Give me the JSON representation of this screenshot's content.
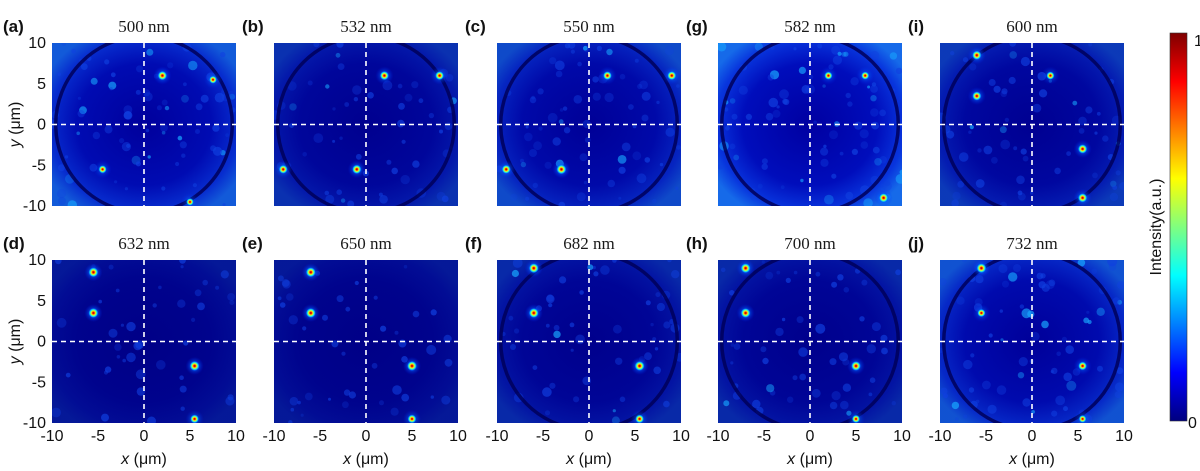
{
  "chart_data": {
    "type": "heatmap",
    "colormap": "jet",
    "x_range": [
      -10,
      10
    ],
    "y_range": [
      -10,
      10
    ],
    "x_ticks": [
      "-10",
      "-5",
      "0",
      "5",
      "10"
    ],
    "y_ticks": [
      "10",
      "5",
      "0",
      "-5",
      "-10"
    ],
    "xlabel_var": "x",
    "xlabel_unit": " (μm)",
    "ylabel_var": "y",
    "ylabel_unit": " (μm)",
    "colorbar": {
      "label": "Intensity(a.u.)",
      "tick_max": "1",
      "tick_min": "0",
      "range": [
        0,
        1
      ]
    },
    "panels": [
      {
        "label": "(a)",
        "title": "500 nm",
        "background_level": 0.22,
        "ring": true,
        "spots": [
          {
            "x": 2,
            "y": 6,
            "intensity": 0.85
          },
          {
            "x": 7.5,
            "y": 5.5,
            "intensity": 0.55
          },
          {
            "x": -4.5,
            "y": -5.5,
            "intensity": 0.6
          },
          {
            "x": 5,
            "y": -9.5,
            "intensity": 0.45
          }
        ]
      },
      {
        "label": "(b)",
        "title": "532 nm",
        "background_level": 0.12,
        "ring": true,
        "spots": [
          {
            "x": 2,
            "y": 6,
            "intensity": 0.8
          },
          {
            "x": 8,
            "y": 6,
            "intensity": 0.75
          },
          {
            "x": -9,
            "y": -5.5,
            "intensity": 0.75
          },
          {
            "x": -1,
            "y": -5.5,
            "intensity": 0.85
          }
        ]
      },
      {
        "label": "(c)",
        "title": "550 nm",
        "background_level": 0.18,
        "ring": true,
        "spots": [
          {
            "x": 2,
            "y": 6,
            "intensity": 0.7
          },
          {
            "x": 9,
            "y": 6,
            "intensity": 0.8
          },
          {
            "x": -9,
            "y": -5.5,
            "intensity": 0.8
          },
          {
            "x": -3,
            "y": -5.5,
            "intensity": 0.95
          }
        ]
      },
      {
        "label": "(g)",
        "title": "582 nm",
        "background_level": 0.26,
        "ring": true,
        "spots": [
          {
            "x": 2,
            "y": 6,
            "intensity": 0.6
          },
          {
            "x": 6,
            "y": 6,
            "intensity": 0.6
          },
          {
            "x": 8,
            "y": -9,
            "intensity": 0.9
          }
        ]
      },
      {
        "label": "(i)",
        "title": "600 nm",
        "background_level": 0.14,
        "ring": true,
        "spots": [
          {
            "x": -6,
            "y": 8.5,
            "intensity": 0.85
          },
          {
            "x": -6,
            "y": 3.5,
            "intensity": 0.8
          },
          {
            "x": 2,
            "y": 6,
            "intensity": 0.6
          },
          {
            "x": 5.5,
            "y": -3,
            "intensity": 0.85
          },
          {
            "x": 5.5,
            "y": -9,
            "intensity": 0.85
          }
        ]
      },
      {
        "label": "(d)",
        "title": "632 nm",
        "background_level": 0.06,
        "ring": false,
        "spots": [
          {
            "x": -5.5,
            "y": 8.5,
            "intensity": 0.95
          },
          {
            "x": -5.5,
            "y": 3.5,
            "intensity": 0.95
          },
          {
            "x": 5.5,
            "y": -3,
            "intensity": 0.95
          },
          {
            "x": 5.5,
            "y": -9.5,
            "intensity": 0.7
          }
        ]
      },
      {
        "label": "(e)",
        "title": "650 nm",
        "background_level": 0.06,
        "ring": false,
        "spots": [
          {
            "x": -6,
            "y": 8.5,
            "intensity": 0.95
          },
          {
            "x": -6,
            "y": 3.5,
            "intensity": 0.95
          },
          {
            "x": 5,
            "y": -3,
            "intensity": 0.95
          },
          {
            "x": 5,
            "y": -9.5,
            "intensity": 0.7
          }
        ]
      },
      {
        "label": "(f)",
        "title": "682 nm",
        "background_level": 0.1,
        "ring": true,
        "spots": [
          {
            "x": -6,
            "y": 9,
            "intensity": 0.95
          },
          {
            "x": -6,
            "y": 3.5,
            "intensity": 0.95
          },
          {
            "x": 5.5,
            "y": -3,
            "intensity": 0.95
          },
          {
            "x": 5.5,
            "y": -9.5,
            "intensity": 0.7
          }
        ]
      },
      {
        "label": "(h)",
        "title": "700 nm",
        "background_level": 0.1,
        "ring": true,
        "spots": [
          {
            "x": -7,
            "y": 9,
            "intensity": 0.95
          },
          {
            "x": -7,
            "y": 3.5,
            "intensity": 0.9
          },
          {
            "x": 5,
            "y": -3,
            "intensity": 0.9
          },
          {
            "x": 5,
            "y": -9.5,
            "intensity": 0.6
          }
        ]
      },
      {
        "label": "(j)",
        "title": "732 nm",
        "background_level": 0.2,
        "ring": true,
        "spots": [
          {
            "x": -5.5,
            "y": 9,
            "intensity": 0.95
          },
          {
            "x": -5.5,
            "y": 3.5,
            "intensity": 0.6
          },
          {
            "x": 5.5,
            "y": -3,
            "intensity": 0.7
          },
          {
            "x": 5.5,
            "y": -9.5,
            "intensity": 0.5
          }
        ]
      }
    ]
  },
  "colors": {
    "background_dark": "#00007f",
    "axis_text": "#111111",
    "crosshair": "#ffffff"
  }
}
